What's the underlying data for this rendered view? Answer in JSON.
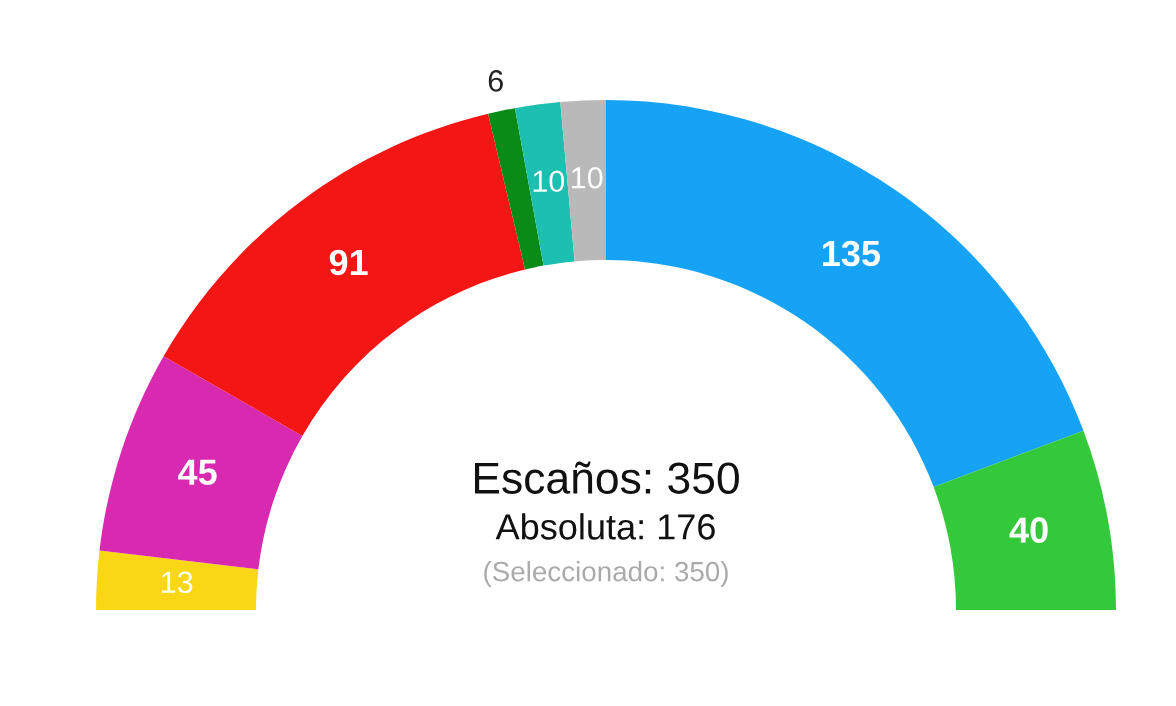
{
  "chart_data": {
    "type": "donut",
    "categories": [
      null,
      null,
      null,
      null,
      null,
      null,
      null,
      null
    ],
    "values": [
      13,
      45,
      91,
      6,
      10,
      10,
      135,
      40
    ],
    "colors": [
      "#f9d616",
      "#d82ab0",
      "#f41515",
      "#0a8a16",
      "#1cbfb0",
      "#b9b9b9",
      "#16a3f6",
      "#34c93a"
    ],
    "data_labels": true,
    "annotations": [
      "Escaños: 350",
      "Absoluta: 176",
      "(Seleccionado: 350)"
    ]
  }
}
